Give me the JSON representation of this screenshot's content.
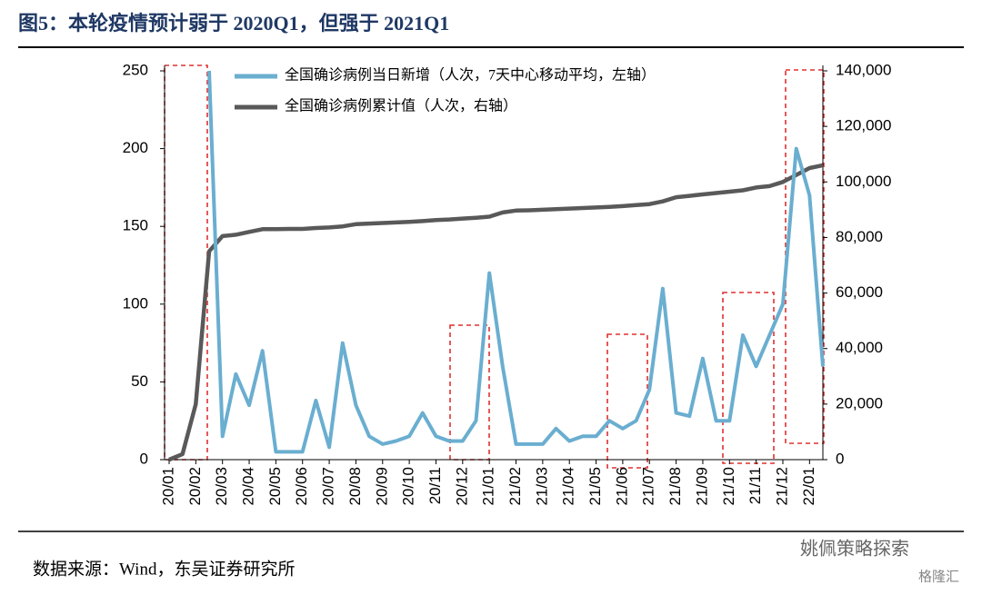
{
  "chart_data": {
    "type": "line",
    "title": "图5：本轮疫情预计弱于 2020Q1，但强于 2021Q1",
    "source": "数据来源：Wind，东吴证券研究所",
    "watermark": [
      "姚佩策略探索",
      "格隆汇"
    ],
    "categories": [
      "20/01",
      null,
      "20/02",
      null,
      "20/03",
      null,
      "20/04",
      null,
      "20/05",
      null,
      "20/06",
      null,
      "20/07",
      null,
      "20/08",
      null,
      "20/09",
      null,
      "20/10",
      null,
      "20/11",
      null,
      "20/12",
      null,
      "21/01",
      null,
      "21/02",
      null,
      "21/03",
      null,
      "21/04",
      null,
      "21/05",
      null,
      "21/06",
      null,
      "21/07",
      null,
      "21/08",
      null,
      "21/09",
      null,
      "21/10",
      null,
      "21/11",
      null,
      "21/12",
      null,
      "22/01",
      null
    ],
    "series": [
      {
        "name": "全国确诊病例当日新增（人次，7天中心移动平均，左轴）",
        "color": "#6aaed0",
        "axis": "y",
        "values": [
          null,
          null,
          null,
          250,
          15,
          55,
          35,
          70,
          5,
          5,
          5,
          38,
          8,
          75,
          35,
          15,
          10,
          12,
          15,
          30,
          15,
          12,
          12,
          25,
          120,
          60,
          10,
          10,
          10,
          20,
          12,
          15,
          15,
          25,
          20,
          25,
          45,
          110,
          30,
          28,
          65,
          25,
          25,
          80,
          60,
          80,
          100,
          200,
          170,
          60
        ]
      },
      {
        "name": "全国确诊病例累计值（人次，右轴）",
        "color": "#595959",
        "axis": "y2",
        "values": [
          0,
          2000,
          20000,
          75000,
          80500,
          81000,
          82000,
          83000,
          83000,
          83100,
          83100,
          83400,
          83600,
          84000,
          84800,
          85000,
          85200,
          85400,
          85600,
          85900,
          86300,
          86500,
          86800,
          87100,
          87500,
          89000,
          89700,
          89800,
          90000,
          90200,
          90400,
          90600,
          90800,
          91000,
          91300,
          91700,
          92000,
          93000,
          94500,
          95000,
          95500,
          96000,
          96500,
          97000,
          98000,
          98500,
          100000,
          102500,
          105000,
          106000
        ]
      }
    ],
    "ylim": [
      0,
      250
    ],
    "yticks": [
      0,
      50,
      100,
      150,
      200,
      250
    ],
    "y2lim": [
      0,
      140000
    ],
    "y2ticks": [
      0,
      {
        "value": 20000,
        "label": "20,000"
      },
      {
        "value": 40000,
        "label": "40,000"
      },
      {
        "value": 60000,
        "label": "60,000"
      },
      {
        "value": 80000,
        "label": "80,000"
      },
      {
        "value": 100000,
        "label": "100,000"
      },
      {
        "value": 120000,
        "label": "120,000"
      },
      {
        "value": 140000,
        "label": "140,000"
      }
    ],
    "legend": "top"
  }
}
